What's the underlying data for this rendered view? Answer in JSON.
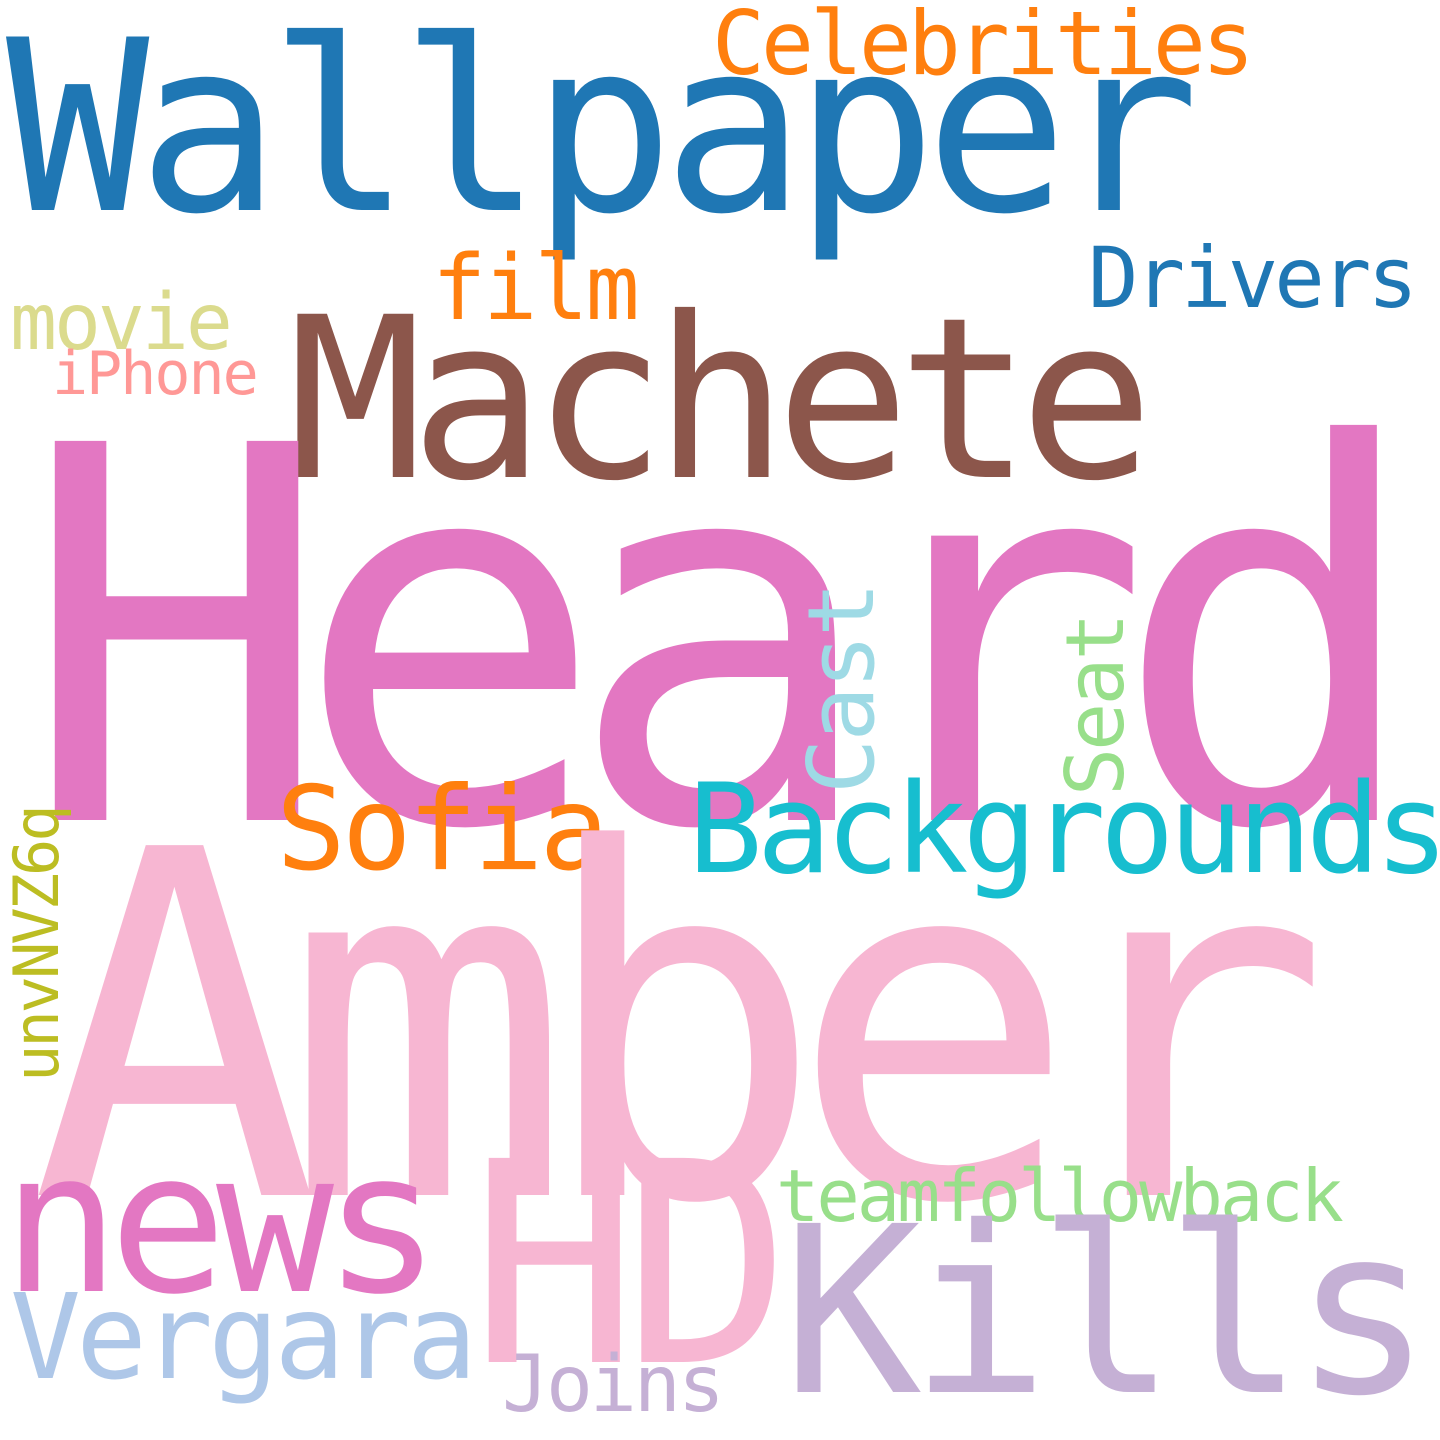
{
  "words": {
    "wallpaper": {
      "text": "Wallpaper",
      "color": "#1f77b4"
    },
    "celebrities": {
      "text": "Celebrities",
      "color": "#ff7f0e"
    },
    "drivers": {
      "text": "Drivers",
      "color": "#1f77b4"
    },
    "film": {
      "text": "film",
      "color": "#ff7f0e"
    },
    "machete": {
      "text": "Machete",
      "color": "#8c564b"
    },
    "movie": {
      "text": "movie",
      "color": "#dbdb8d"
    },
    "iphone": {
      "text": "iPhone",
      "color": "#ff9896"
    },
    "heard": {
      "text": "Heard",
      "color": "#e377c2"
    },
    "cast": {
      "text": "Cast",
      "color": "#9edae5"
    },
    "seat": {
      "text": "Seat",
      "color": "#98df8a"
    },
    "sofia": {
      "text": "Sofia",
      "color": "#ff7f0e"
    },
    "backgrounds": {
      "text": "Backgrounds",
      "color": "#17becf"
    },
    "unvnvz6q": {
      "text": "unvNVZ6q",
      "color": "#bcbd22"
    },
    "amber": {
      "text": "Amber",
      "color": "#f7b6d2"
    },
    "news": {
      "text": "news",
      "color": "#e377c2"
    },
    "hd": {
      "text": "HD",
      "color": "#f7b6d2"
    },
    "teamfollowback": {
      "text": "teamfollowback",
      "color": "#98df8a"
    },
    "kills": {
      "text": "Kills",
      "color": "#c5b0d5"
    },
    "vergara": {
      "text": "Vergara",
      "color": "#aec7e8"
    },
    "joins": {
      "text": "Joins",
      "color": "#c5b0d5"
    }
  }
}
